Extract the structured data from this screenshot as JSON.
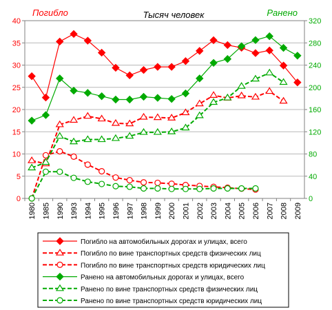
{
  "chart_data": {
    "type": "line",
    "title": "Тысяч человек",
    "left_axis_label": "Погибло",
    "right_axis_label": "Ранено",
    "colors": {
      "killed": "#ff0000",
      "injured": "#00aa00"
    },
    "categories": [
      "1980",
      "1985",
      "1990",
      "1993",
      "1994",
      "1995",
      "1996",
      "1997",
      "1998",
      "1999",
      "2000",
      "2001",
      "2002",
      "2003",
      "2004",
      "2005",
      "2006",
      "2007",
      "2008",
      "2009"
    ],
    "y_left": {
      "min": 0,
      "max": 40,
      "ticks": [
        "0",
        "5",
        "10",
        "15",
        "20",
        "25",
        "30",
        "35",
        "40"
      ]
    },
    "y_right": {
      "min": 0,
      "max": 320,
      "ticks": [
        "0",
        "40",
        "80",
        "120",
        "160",
        "200",
        "240",
        "280",
        "320"
      ]
    },
    "series": [
      {
        "name": "Погибло на автомобильных дорогах и улицах, всего",
        "axis": "left",
        "color": "#ff0000",
        "dash": "solid",
        "marker": "diamond",
        "values": [
          27.5,
          22.7,
          35.3,
          37.0,
          35.5,
          32.8,
          29.4,
          27.7,
          28.9,
          29.6,
          29.6,
          30.9,
          33.2,
          35.6,
          34.5,
          33.9,
          32.7,
          33.3,
          29.9,
          26.1
        ]
      },
      {
        "name": "Погибло по вине транспортных средств физических лиц",
        "axis": "left",
        "color": "#ff0000",
        "dash": "dashed",
        "marker": "triangle",
        "values": [
          8.5,
          7.8,
          16.6,
          17.6,
          18.5,
          17.9,
          16.9,
          16.8,
          18.3,
          18.2,
          18.1,
          19.3,
          21.3,
          23.2,
          22.6,
          23.1,
          22.8,
          24.1,
          21.9,
          null
        ]
      },
      {
        "name": "Погибло по вине транспортных средств юридических лиц",
        "axis": "left",
        "color": "#ff0000",
        "dash": "dashed",
        "marker": "circle",
        "values": [
          0,
          9.7,
          10.6,
          9.4,
          7.6,
          6.1,
          4.7,
          4.1,
          3.6,
          3.5,
          3.3,
          3.0,
          2.8,
          2.6,
          2.4,
          2.2,
          2.0,
          null,
          null,
          null
        ]
      },
      {
        "name": "Ранено на автомобильных дорогах и улицах, всего",
        "axis": "right",
        "color": "#00aa00",
        "dash": "solid",
        "marker": "diamond",
        "values": [
          140,
          150,
          216,
          194,
          190,
          184,
          178,
          178,
          183,
          181,
          179,
          189,
          216,
          244,
          251,
          274,
          285,
          292,
          271,
          257
        ]
      },
      {
        "name": "Ранено по вине транспортных средств физических лиц",
        "axis": "right",
        "color": "#00aa00",
        "dash": "dashed",
        "marker": "triangle",
        "values": [
          55,
          65,
          112,
          102,
          106,
          106,
          108,
          112,
          119,
          119,
          120,
          127,
          149,
          173,
          181,
          202,
          215,
          226,
          209,
          null
        ]
      },
      {
        "name": "Ранено по вине транспортных средств юридических лиц",
        "axis": "right",
        "color": "#00aa00",
        "dash": "dashed",
        "marker": "circle",
        "values": [
          0,
          48,
          48,
          37,
          30,
          26,
          22,
          21,
          18,
          18,
          17,
          17,
          17,
          18,
          18,
          18,
          18,
          null,
          null,
          null
        ]
      }
    ]
  }
}
